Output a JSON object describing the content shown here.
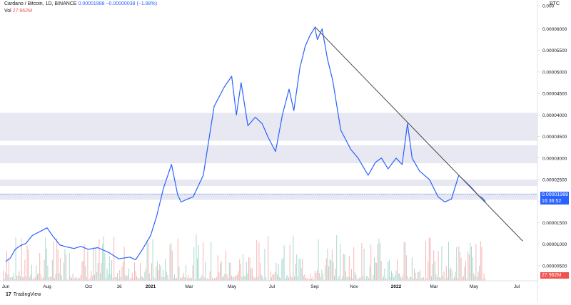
{
  "legend": {
    "title": "Cardano / Bitcoin, 1D, BINANCE",
    "price": "0.00001988",
    "change": "−0.00000038 (−1.88%)",
    "vol_label": "Vol",
    "vol_value": "27.962M"
  },
  "price_badge": {
    "price": "0.00001988",
    "countdown": "16:36:52"
  },
  "volume_badge": "27.962M",
  "axis_unit": "BTC",
  "logo_text": "TradingView",
  "colors": {
    "price_line": "#2962ff",
    "trendline": "#4a4a4a",
    "zones": "#e8e8f2",
    "volume_up": "#a8d9cf",
    "volume_down": "#f5b7b5",
    "grid": "#f0f3fa"
  },
  "chart_data": {
    "type": "line",
    "title": "Cardano / Bitcoin, 1D, BINANCE",
    "xlabel": "",
    "ylabel": "",
    "x_ticks": [
      "Jun",
      "Aug",
      "Oct",
      "16",
      "2021",
      "Mar",
      "May",
      "Jul",
      "Sep",
      "Nov",
      "2022",
      "Mar",
      "May",
      "Jul"
    ],
    "y_ticks": [
      "0.00000500",
      "0.00001000",
      "0.00001500",
      "0.00002000",
      "0.00002500",
      "0.00003000",
      "0.00003500",
      "0.00004000",
      "0.00004500",
      "0.00005000",
      "0.00005500",
      "0.00006000",
      "0.000"
    ],
    "ylim": [
      1.5e-06,
      6.571e-05
    ],
    "grid": false,
    "series": [
      {
        "x": [
          "2020-06-01",
          "2020-06-08",
          "2020-06-15",
          "2020-06-22",
          "2020-07-01",
          "2020-07-10",
          "2020-07-20",
          "2020-08-01",
          "2020-08-10",
          "2020-08-20",
          "2020-09-01",
          "2020-09-10",
          "2020-09-20",
          "2020-10-01",
          "2020-10-15",
          "2020-11-01",
          "2020-11-15",
          "2020-12-01",
          "2020-12-10",
          "2020-12-20",
          "2021-01-01",
          "2021-01-10",
          "2021-01-20",
          "2021-02-01",
          "2021-02-10",
          "2021-02-15",
          "2021-02-25",
          "2021-03-05",
          "2021-03-20",
          "2021-04-05",
          "2021-04-20",
          "2021-05-01",
          "2021-05-08",
          "2021-05-15",
          "2021-05-25",
          "2021-06-05",
          "2021-06-15",
          "2021-06-25",
          "2021-07-05",
          "2021-07-15",
          "2021-07-25",
          "2021-08-01",
          "2021-08-10",
          "2021-08-18",
          "2021-08-25",
          "2021-09-01",
          "2021-09-05",
          "2021-09-12",
          "2021-09-20",
          "2021-09-28",
          "2021-10-10",
          "2021-10-25",
          "2021-11-05",
          "2021-11-20",
          "2021-12-01",
          "2021-12-10",
          "2021-12-20",
          "2022-01-01",
          "2022-01-10",
          "2022-01-18",
          "2022-01-25",
          "2022-02-05",
          "2022-02-20",
          "2022-03-05",
          "2022-03-15",
          "2022-03-25",
          "2022-04-05",
          "2022-04-15",
          "2022-04-25",
          "2022-05-05",
          "2022-05-10",
          "2022-05-15"
        ],
        "values": [
          6e-06,
          6.8e-06,
          8.8e-06,
          9.6e-06,
          1.02e-05,
          1.2e-05,
          1.28e-05,
          1.38e-05,
          1.18e-05,
          9.8e-06,
          9.3e-06,
          9e-06,
          9.5e-06,
          8.8e-06,
          9.2e-06,
          8e-06,
          6.6e-06,
          7e-06,
          6.4e-06,
          8.8e-06,
          1.2e-05,
          1.65e-05,
          2.3e-05,
          2.85e-05,
          2.15e-05,
          1.98e-05,
          2.05e-05,
          2.1e-05,
          2.6e-05,
          4.2e-05,
          4.65e-05,
          4.9e-05,
          4e-05,
          4.75e-05,
          3.75e-05,
          3.95e-05,
          3.8e-05,
          3.45e-05,
          3.15e-05,
          4e-05,
          4.6e-05,
          4.1e-05,
          5.1e-05,
          5.6e-05,
          5.85e-05,
          6.03e-05,
          5.75e-05,
          6e-05,
          5.3e-05,
          4.8e-05,
          3.65e-05,
          3.2e-05,
          3e-05,
          2.6e-05,
          2.9e-05,
          3e-05,
          2.75e-05,
          3e-05,
          2.85e-05,
          3.8e-05,
          3e-05,
          2.7e-05,
          2.5e-05,
          2.1e-05,
          1.98e-05,
          2.05e-05,
          2.6e-05,
          2.45e-05,
          2.3e-05,
          2.12e-05,
          2.08e-05,
          1.99e-05
        ]
      }
    ],
    "trendline": {
      "start": [
        "2021-09-01",
        6.05e-05
      ],
      "end": [
        "2022-07-10",
        1.07e-05
      ]
    },
    "zones": [
      [
        3.4e-05,
        4.05e-05
      ],
      [
        2.88e-05,
        3.3e-05
      ],
      [
        2.35e-05,
        2.5e-05
      ],
      [
        2.03e-05,
        2.18e-05
      ]
    ],
    "volume": {
      "label": "Vol",
      "last_value": "27.962M"
    }
  }
}
